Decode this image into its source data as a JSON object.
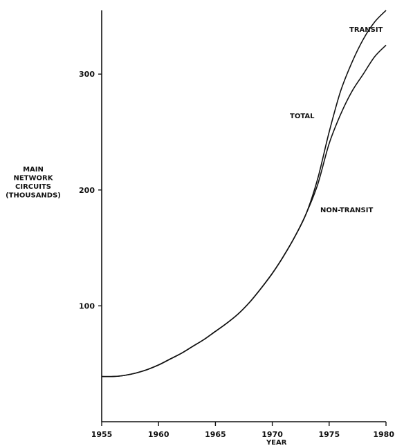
{
  "chart_data": {
    "type": "line",
    "title": "",
    "xlabel": "YEAR",
    "ylabel": [
      "MAIN",
      "NETWORK",
      "CIRCUITS",
      "(THOUSANDS)"
    ],
    "xlim": [
      1955,
      1980
    ],
    "ylim": [
      0,
      355
    ],
    "x_ticks": [
      1955,
      1960,
      1965,
      1970,
      1975,
      1980
    ],
    "y_ticks": [
      100,
      200,
      300
    ],
    "grid": false,
    "legend": "none",
    "series": [
      {
        "name": "TOTAL",
        "x": [
          1955,
          1956,
          1957,
          1958,
          1959,
          1960,
          1961,
          1962,
          1963,
          1964,
          1965,
          1966,
          1967,
          1968,
          1969,
          1970,
          1971,
          1972,
          1973,
          1974,
          1975,
          1976,
          1977,
          1978,
          1979,
          1980
        ],
        "values": [
          39,
          39,
          40,
          42,
          45,
          49,
          54,
          59,
          65,
          71,
          78,
          85,
          93,
          103,
          115,
          128,
          143,
          160,
          180,
          210,
          250,
          285,
          310,
          330,
          345,
          355
        ]
      },
      {
        "name": "NON-TRANSIT",
        "x": [
          1955,
          1956,
          1957,
          1958,
          1959,
          1960,
          1961,
          1962,
          1963,
          1964,
          1965,
          1966,
          1967,
          1968,
          1969,
          1970,
          1971,
          1972,
          1973,
          1974,
          1975,
          1976,
          1977,
          1978,
          1979,
          1980
        ],
        "values": [
          39,
          39,
          40,
          42,
          45,
          49,
          54,
          59,
          65,
          71,
          78,
          85,
          93,
          103,
          115,
          128,
          143,
          160,
          180,
          205,
          240,
          265,
          285,
          300,
          315,
          325
        ]
      }
    ],
    "annotations": [
      {
        "text": "TRANSIT",
        "series": "TOTAL"
      },
      {
        "text": "TOTAL",
        "series": "TOTAL"
      },
      {
        "text": "NON-TRANSIT",
        "series": "NON-TRANSIT"
      }
    ]
  }
}
